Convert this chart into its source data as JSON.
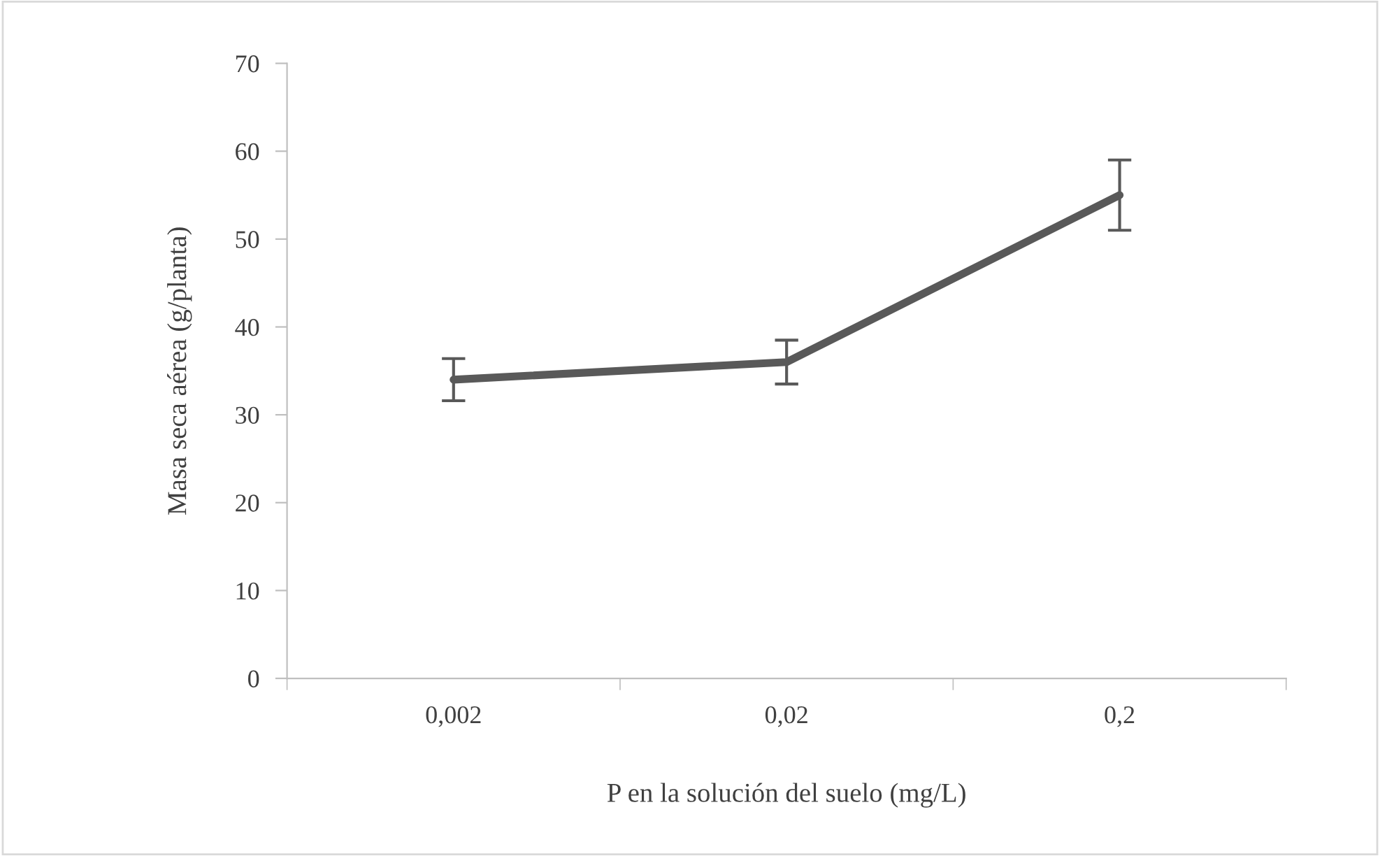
{
  "chart_data": {
    "type": "line",
    "xlabel": "P en la solución del suelo (mg/L)",
    "ylabel": "Masa seca aérea (g/planta)",
    "categories": [
      "0,002",
      "0,02",
      "0,2"
    ],
    "series": [
      {
        "color": "#595959",
        "values": [
          34,
          36,
          55
        ],
        "errors": [
          2.4,
          2.5,
          4
        ]
      }
    ],
    "ylim": [
      0,
      70
    ],
    "yticks": [
      0,
      10,
      20,
      30,
      40,
      50,
      60,
      70
    ],
    "grid": false,
    "marker": "none",
    "line_style": "solid"
  }
}
